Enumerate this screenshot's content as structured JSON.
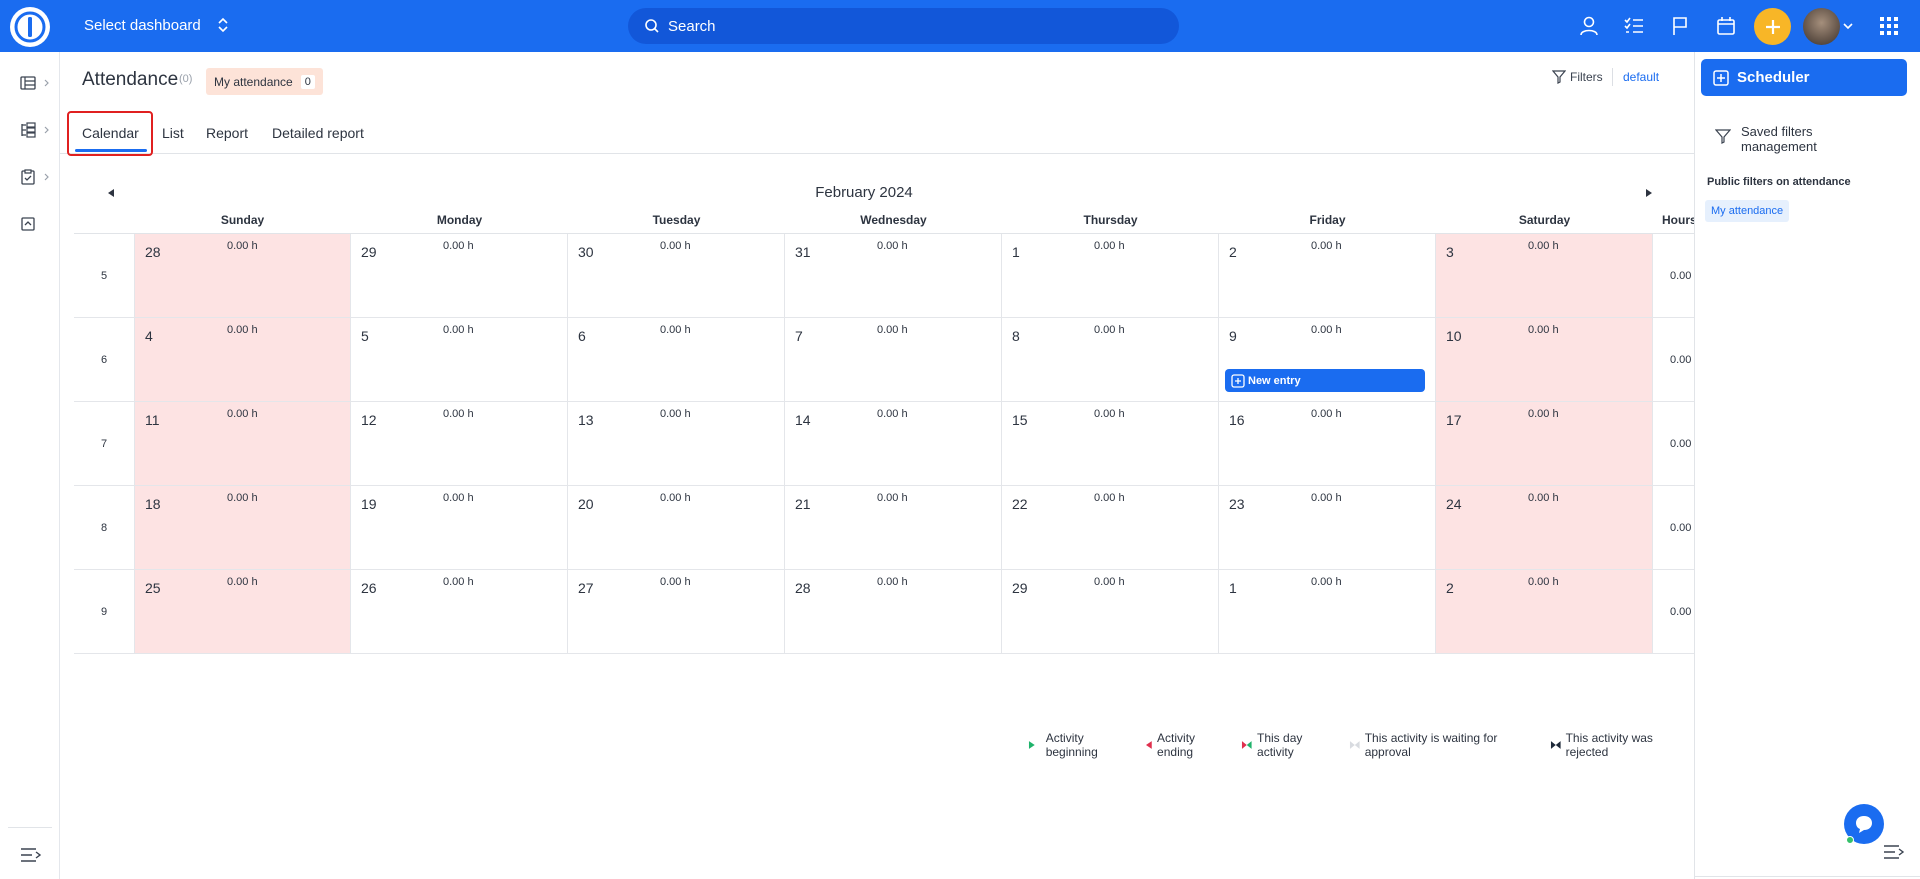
{
  "topbar": {
    "dashboard_label": "Select dashboard",
    "search_placeholder": "Search"
  },
  "page": {
    "title": "Attendance",
    "count": "(0)",
    "filter_chip": "My attendance",
    "filter_chip_count": "0",
    "filters_label": "Filters",
    "default_label": "default"
  },
  "tabs": [
    {
      "label": "Calendar",
      "active": true
    },
    {
      "label": "List"
    },
    {
      "label": "Report"
    },
    {
      "label": "Detailed report"
    }
  ],
  "calendar": {
    "month": "February 2024",
    "day_headers": [
      "Sunday",
      "Monday",
      "Tuesday",
      "Wednesday",
      "Thursday",
      "Friday",
      "Saturday"
    ],
    "hours_header": "Hours",
    "weeks": [
      {
        "number": "5",
        "total": "0.00",
        "days": [
          "28",
          "29",
          "30",
          "31",
          "1",
          "2",
          "3"
        ],
        "hours": [
          "0.00 h",
          "0.00 h",
          "0.00 h",
          "0.00 h",
          "0.00 h",
          "0.00 h",
          "0.00 h"
        ]
      },
      {
        "number": "6",
        "total": "0.00",
        "days": [
          "4",
          "5",
          "6",
          "7",
          "8",
          "9",
          "10"
        ],
        "hours": [
          "0.00 h",
          "0.00 h",
          "0.00 h",
          "0.00 h",
          "0.00 h",
          "0.00 h",
          "0.00 h"
        ]
      },
      {
        "number": "7",
        "total": "0.00",
        "days": [
          "11",
          "12",
          "13",
          "14",
          "15",
          "16",
          "17"
        ],
        "hours": [
          "0.00 h",
          "0.00 h",
          "0.00 h",
          "0.00 h",
          "0.00 h",
          "0.00 h",
          "0.00 h"
        ]
      },
      {
        "number": "8",
        "total": "0.00",
        "days": [
          "18",
          "19",
          "20",
          "21",
          "22",
          "23",
          "24"
        ],
        "hours": [
          "0.00 h",
          "0.00 h",
          "0.00 h",
          "0.00 h",
          "0.00 h",
          "0.00 h",
          "0.00 h"
        ]
      },
      {
        "number": "9",
        "total": "0.00",
        "days": [
          "25",
          "26",
          "27",
          "28",
          "29",
          "1",
          "2"
        ],
        "hours": [
          "0.00 h",
          "0.00 h",
          "0.00 h",
          "0.00 h",
          "0.00 h",
          "0.00 h",
          "0.00 h"
        ]
      }
    ],
    "new_entry_label": "New entry"
  },
  "legend": [
    "Activity beginning",
    "Activity ending",
    "This day activity",
    "This activity is waiting for approval",
    "This activity was rejected"
  ],
  "colors": {
    "brand": "#1a6cf0",
    "weekend": "#fde3e3",
    "plus_button": "#f8b627",
    "legend_green": "#1fb36b",
    "legend_red": "#e0304e"
  },
  "right_panel": {
    "scheduler_label": "Scheduler",
    "saved_filters_label": "Saved filters management",
    "public_filters_title": "Public filters on attendance",
    "public_filters": [
      "My attendance"
    ]
  }
}
